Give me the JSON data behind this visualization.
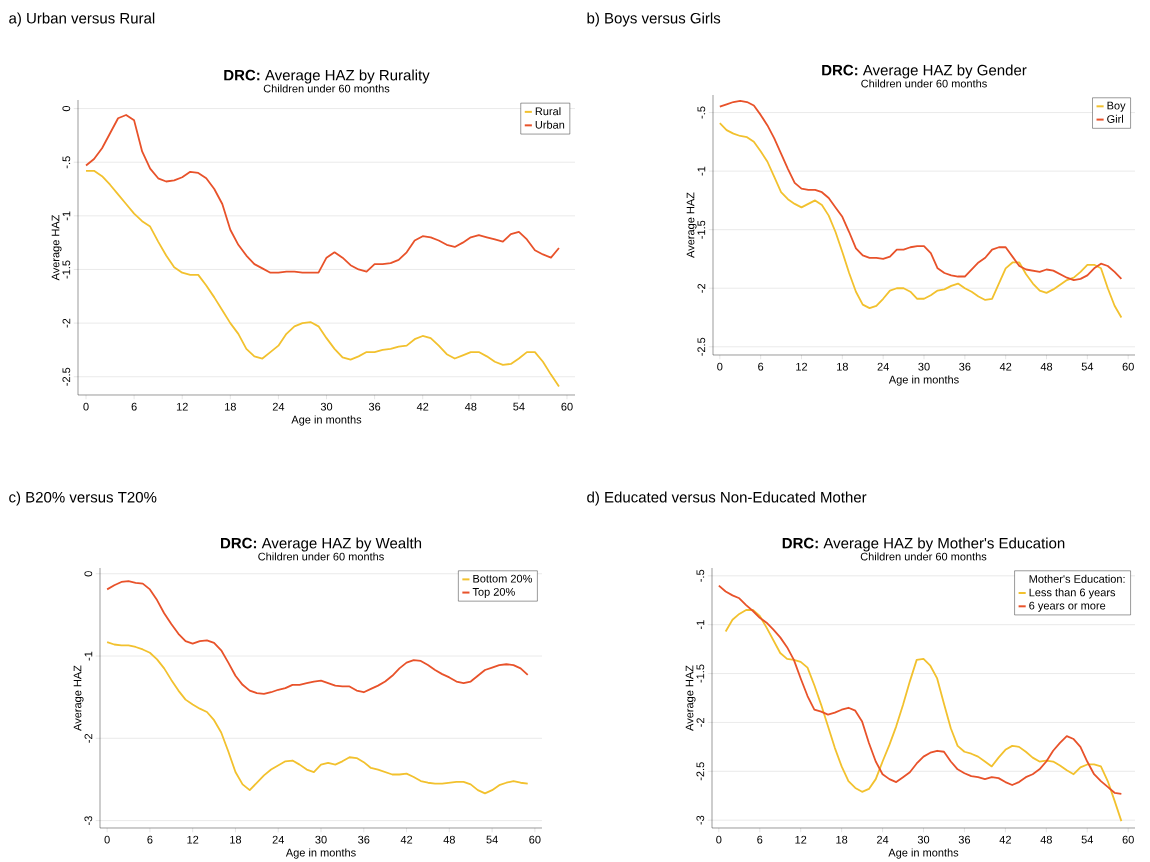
{
  "chart_data": [
    {
      "type": "line",
      "title": "**DRC:** Average HAZ by Rurality",
      "subtitle": "Children under 60 months",
      "annotations": [
        "a) Urban versus Rural"
      ],
      "xlabel": "Age in months",
      "ylabel": "Average HAZ",
      "xlim": [
        -1,
        61
      ],
      "xticks": [
        0,
        6,
        12,
        18,
        24,
        30,
        36,
        42,
        48,
        54,
        60
      ],
      "ylim": [
        -2.67,
        0.08
      ],
      "yticks": [
        0,
        {
          "value": -0.5,
          "label": "-.5"
        },
        -1,
        {
          "value": -1.5,
          "label": "-1.5"
        },
        -2,
        {
          "value": -2.5,
          "label": "-2.5"
        }
      ],
      "grid": "y",
      "legend": "top right",
      "x": [
        0,
        1,
        2,
        3,
        4,
        5,
        6,
        7,
        8,
        9,
        10,
        11,
        12,
        13,
        14,
        15,
        16,
        17,
        18,
        19,
        20,
        21,
        22,
        23,
        24,
        25,
        26,
        27,
        28,
        29,
        30,
        31,
        32,
        33,
        34,
        35,
        36,
        37,
        38,
        39,
        40,
        41,
        42,
        43,
        44,
        45,
        46,
        47,
        48,
        49,
        50,
        51,
        52,
        53,
        54,
        55,
        56,
        57,
        58,
        59
      ],
      "series": [
        {
          "name": "Rural",
          "color": "#f2c12e",
          "values": [
            -0.58,
            -0.58,
            -0.63,
            -0.71,
            -0.8,
            -0.89,
            -0.98,
            -1.05,
            -1.1,
            -1.24,
            -1.37,
            -1.48,
            -1.53,
            -1.55,
            -1.55,
            -1.65,
            -1.76,
            -1.88,
            -2.0,
            -2.1,
            -2.24,
            -2.31,
            -2.33,
            -2.27,
            -2.21,
            -2.1,
            -2.03,
            -2.0,
            -1.99,
            -2.03,
            -2.14,
            -2.24,
            -2.32,
            -2.34,
            -2.31,
            -2.27,
            -2.27,
            -2.25,
            -2.24,
            -2.22,
            -2.21,
            -2.15,
            -2.12,
            -2.14,
            -2.21,
            -2.29,
            -2.33,
            -2.3,
            -2.27,
            -2.27,
            -2.31,
            -2.36,
            -2.39,
            -2.38,
            -2.33,
            -2.27,
            -2.27,
            -2.36,
            -2.48,
            -2.59
          ]
        },
        {
          "name": "Urban",
          "color": "#e8522a",
          "values": [
            -0.53,
            -0.47,
            -0.37,
            -0.23,
            -0.09,
            -0.06,
            -0.11,
            -0.4,
            -0.56,
            -0.65,
            -0.68,
            -0.67,
            -0.64,
            -0.59,
            -0.6,
            -0.65,
            -0.75,
            -0.89,
            -1.13,
            -1.27,
            -1.37,
            -1.45,
            -1.49,
            -1.53,
            -1.53,
            -1.52,
            -1.52,
            -1.53,
            -1.53,
            -1.53,
            -1.39,
            -1.34,
            -1.39,
            -1.46,
            -1.5,
            -1.52,
            -1.45,
            -1.45,
            -1.44,
            -1.41,
            -1.34,
            -1.23,
            -1.19,
            -1.2,
            -1.23,
            -1.27,
            -1.29,
            -1.25,
            -1.2,
            -1.18,
            -1.2,
            -1.22,
            -1.24,
            -1.17,
            -1.15,
            -1.22,
            -1.32,
            -1.36,
            -1.39,
            -1.3
          ]
        }
      ]
    },
    {
      "type": "line",
      "title": "**DRC:** Average HAZ by Gender",
      "subtitle": "Children under 60 months",
      "annotations": [
        "b) Boys versus Girls"
      ],
      "xlabel": "Age in months",
      "ylabel": "Average HAZ",
      "xlim": [
        -1,
        61
      ],
      "xticks": [
        0,
        6,
        12,
        18,
        24,
        30,
        36,
        42,
        48,
        54,
        60
      ],
      "ylim": [
        -2.57,
        -0.35
      ],
      "yticks": [
        {
          "value": -0.5,
          "label": "-.5"
        },
        -1,
        {
          "value": -1.5,
          "label": "-1.5"
        },
        -2,
        {
          "value": -2.5,
          "label": "-2.5"
        }
      ],
      "grid": "y",
      "legend": "top right",
      "x": [
        0,
        1,
        2,
        3,
        4,
        5,
        6,
        7,
        8,
        9,
        10,
        11,
        12,
        13,
        14,
        15,
        16,
        17,
        18,
        19,
        20,
        21,
        22,
        23,
        24,
        25,
        26,
        27,
        28,
        29,
        30,
        31,
        32,
        33,
        34,
        35,
        36,
        37,
        38,
        39,
        40,
        41,
        42,
        43,
        44,
        45,
        46,
        47,
        48,
        49,
        50,
        51,
        52,
        53,
        54,
        55,
        56,
        57,
        58,
        59
      ],
      "series": [
        {
          "name": "Boy",
          "color": "#f2c12e",
          "values": [
            -0.59,
            -0.65,
            -0.68,
            -0.7,
            -0.71,
            -0.75,
            -0.83,
            -0.92,
            -1.05,
            -1.18,
            -1.24,
            -1.28,
            -1.31,
            -1.28,
            -1.25,
            -1.29,
            -1.38,
            -1.52,
            -1.69,
            -1.87,
            -2.03,
            -2.14,
            -2.17,
            -2.15,
            -2.09,
            -2.02,
            -2.0,
            -2.0,
            -2.03,
            -2.09,
            -2.09,
            -2.06,
            -2.02,
            -2.01,
            -1.98,
            -1.96,
            -2.0,
            -2.03,
            -2.07,
            -2.1,
            -2.09,
            -1.96,
            -1.83,
            -1.78,
            -1.78,
            -1.88,
            -1.96,
            -2.02,
            -2.04,
            -2.01,
            -1.97,
            -1.93,
            -1.91,
            -1.86,
            -1.8,
            -1.8,
            -1.83,
            -2.0,
            -2.15,
            -2.25
          ]
        },
        {
          "name": "Girl",
          "color": "#e8522a",
          "values": [
            -0.45,
            -0.43,
            -0.41,
            -0.4,
            -0.41,
            -0.44,
            -0.52,
            -0.61,
            -0.72,
            -0.85,
            -0.98,
            -1.1,
            -1.15,
            -1.16,
            -1.16,
            -1.18,
            -1.23,
            -1.31,
            -1.39,
            -1.52,
            -1.66,
            -1.72,
            -1.74,
            -1.74,
            -1.75,
            -1.73,
            -1.67,
            -1.67,
            -1.65,
            -1.64,
            -1.64,
            -1.7,
            -1.83,
            -1.87,
            -1.89,
            -1.9,
            -1.9,
            -1.84,
            -1.78,
            -1.74,
            -1.67,
            -1.65,
            -1.65,
            -1.73,
            -1.81,
            -1.84,
            -1.85,
            -1.86,
            -1.84,
            -1.85,
            -1.88,
            -1.91,
            -1.93,
            -1.92,
            -1.89,
            -1.83,
            -1.79,
            -1.81,
            -1.86,
            -1.92
          ]
        }
      ]
    },
    {
      "type": "line",
      "title": "**DRC:** Average HAZ by Wealth",
      "subtitle": "Children under 60 months",
      "annotations": [
        "c) B20% versus T20%"
      ],
      "xlabel": "Age in months",
      "ylabel": "Average HAZ",
      "xlim": [
        -1,
        61
      ],
      "xticks": [
        0,
        6,
        12,
        18,
        24,
        30,
        36,
        42,
        48,
        54,
        60
      ],
      "ylim": [
        -3.09,
        0.07
      ],
      "yticks": [
        0,
        -1,
        -2,
        -3
      ],
      "grid": "y",
      "legend": "top right",
      "x": [
        0,
        1,
        2,
        3,
        4,
        5,
        6,
        7,
        8,
        9,
        10,
        11,
        12,
        13,
        14,
        15,
        16,
        17,
        18,
        19,
        20,
        21,
        22,
        23,
        24,
        25,
        26,
        27,
        28,
        29,
        30,
        31,
        32,
        33,
        34,
        35,
        36,
        37,
        38,
        39,
        40,
        41,
        42,
        43,
        44,
        45,
        46,
        47,
        48,
        49,
        50,
        51,
        52,
        53,
        54,
        55,
        56,
        57,
        58,
        59
      ],
      "series": [
        {
          "name": "Bottom 20%",
          "color": "#f2c12e",
          "values": [
            -0.83,
            -0.86,
            -0.87,
            -0.87,
            -0.89,
            -0.92,
            -0.96,
            -1.04,
            -1.15,
            -1.29,
            -1.42,
            -1.53,
            -1.59,
            -1.64,
            -1.68,
            -1.78,
            -1.93,
            -2.16,
            -2.41,
            -2.56,
            -2.63,
            -2.54,
            -2.45,
            -2.38,
            -2.33,
            -2.28,
            -2.27,
            -2.32,
            -2.38,
            -2.41,
            -2.32,
            -2.3,
            -2.32,
            -2.28,
            -2.23,
            -2.24,
            -2.29,
            -2.36,
            -2.38,
            -2.41,
            -2.44,
            -2.44,
            -2.43,
            -2.47,
            -2.52,
            -2.54,
            -2.55,
            -2.55,
            -2.54,
            -2.53,
            -2.53,
            -2.56,
            -2.63,
            -2.67,
            -2.63,
            -2.57,
            -2.54,
            -2.52,
            -2.54,
            -2.55
          ]
        },
        {
          "name": "Top 20%",
          "color": "#e8522a",
          "values": [
            -0.19,
            -0.14,
            -0.1,
            -0.09,
            -0.11,
            -0.12,
            -0.19,
            -0.32,
            -0.48,
            -0.61,
            -0.73,
            -0.82,
            -0.85,
            -0.82,
            -0.81,
            -0.84,
            -0.93,
            -1.08,
            -1.24,
            -1.35,
            -1.42,
            -1.45,
            -1.46,
            -1.44,
            -1.41,
            -1.39,
            -1.35,
            -1.35,
            -1.33,
            -1.31,
            -1.3,
            -1.33,
            -1.36,
            -1.37,
            -1.37,
            -1.42,
            -1.44,
            -1.4,
            -1.36,
            -1.31,
            -1.24,
            -1.15,
            -1.08,
            -1.05,
            -1.06,
            -1.11,
            -1.17,
            -1.22,
            -1.26,
            -1.31,
            -1.33,
            -1.31,
            -1.24,
            -1.17,
            -1.14,
            -1.11,
            -1.1,
            -1.11,
            -1.15,
            -1.23
          ]
        }
      ]
    },
    {
      "type": "line",
      "title": "**DRC:** Average HAZ by Mother's Education",
      "subtitle": "Children under 60 months",
      "annotations": [
        "d) Educated versus Non-Educated Mother"
      ],
      "xlabel": "Age in months",
      "ylabel": "Average HAZ",
      "legend_title": "Mother's Education:",
      "xlim": [
        -1,
        61
      ],
      "xticks": [
        0,
        6,
        12,
        18,
        24,
        30,
        36,
        42,
        48,
        54,
        60
      ],
      "ylim": [
        -3.08,
        -0.42
      ],
      "yticks": [
        {
          "value": -0.5,
          "label": "-.5"
        },
        -1,
        {
          "value": -1.5,
          "label": "-1.5"
        },
        -2,
        {
          "value": -2.5,
          "label": "-2.5"
        },
        -3
      ],
      "grid": "y",
      "legend": "top right",
      "x": [
        0,
        1,
        2,
        3,
        4,
        5,
        6,
        7,
        8,
        9,
        10,
        11,
        12,
        13,
        14,
        15,
        16,
        17,
        18,
        19,
        20,
        21,
        22,
        23,
        24,
        25,
        26,
        27,
        28,
        29,
        30,
        31,
        32,
        33,
        34,
        35,
        36,
        37,
        38,
        39,
        40,
        41,
        42,
        43,
        44,
        45,
        46,
        47,
        48,
        49,
        50,
        51,
        52,
        53,
        54,
        55,
        56,
        57,
        58,
        59
      ],
      "series": [
        {
          "name": "Less than 6 years",
          "color": "#f2c12e",
          "values": [
            null,
            -1.07,
            -0.95,
            -0.89,
            -0.85,
            -0.85,
            -0.91,
            -1.03,
            -1.16,
            -1.29,
            -1.35,
            -1.36,
            -1.38,
            -1.44,
            -1.62,
            -1.82,
            -2.04,
            -2.26,
            -2.45,
            -2.6,
            -2.67,
            -2.71,
            -2.68,
            -2.58,
            -2.4,
            -2.23,
            -2.04,
            -1.82,
            -1.58,
            -1.36,
            -1.35,
            -1.42,
            -1.55,
            -1.81,
            -2.06,
            -2.24,
            -2.3,
            -2.32,
            -2.35,
            -2.4,
            -2.45,
            -2.36,
            -2.28,
            -2.24,
            -2.25,
            -2.3,
            -2.36,
            -2.4,
            -2.39,
            -2.4,
            -2.44,
            -2.49,
            -2.53,
            -2.46,
            -2.43,
            -2.43,
            -2.45,
            -2.6,
            -2.8,
            -3.01
          ]
        },
        {
          "name": "6 years or more",
          "color": "#e8522a",
          "values": [
            -0.6,
            -0.66,
            -0.7,
            -0.73,
            -0.8,
            -0.86,
            -0.93,
            -0.98,
            -1.05,
            -1.13,
            -1.23,
            -1.36,
            -1.55,
            -1.73,
            -1.87,
            -1.89,
            -1.92,
            -1.9,
            -1.87,
            -1.85,
            -1.88,
            -1.99,
            -2.21,
            -2.4,
            -2.53,
            -2.58,
            -2.61,
            -2.56,
            -2.51,
            -2.42,
            -2.35,
            -2.31,
            -2.29,
            -2.3,
            -2.4,
            -2.48,
            -2.52,
            -2.55,
            -2.56,
            -2.58,
            -2.56,
            -2.57,
            -2.61,
            -2.64,
            -2.61,
            -2.56,
            -2.53,
            -2.48,
            -2.4,
            -2.29,
            -2.21,
            -2.14,
            -2.17,
            -2.25,
            -2.4,
            -2.53,
            -2.6,
            -2.66,
            -2.72,
            -2.73
          ]
        }
      ]
    }
  ]
}
